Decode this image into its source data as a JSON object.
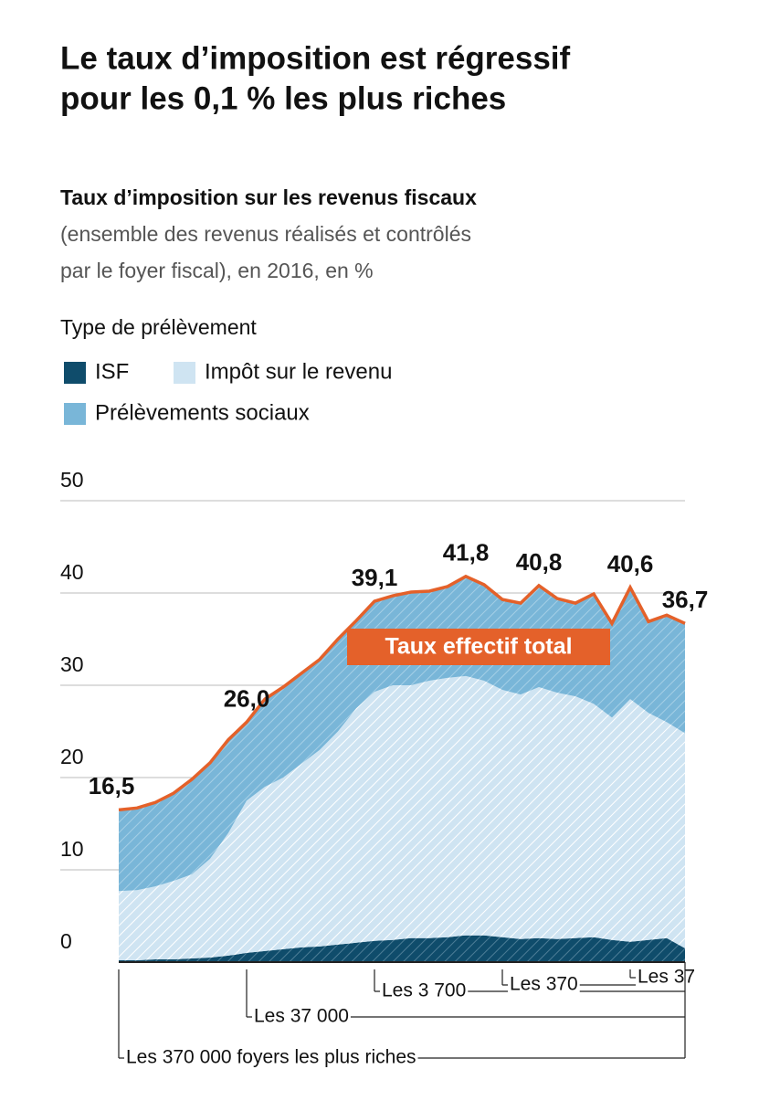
{
  "chart_data": {
    "type": "stacked-area",
    "title": [
      "Le taux d’imposition est régressif",
      "pour les 0,1 % les plus riches"
    ],
    "subtitle": "Taux d’imposition sur les revenus fiscaux",
    "description": [
      "(ensemble des revenus réalisés et contrôlés",
      "par le foyer fiscal), en 2016, en %"
    ],
    "legend_title": "Type de prélèvement",
    "categories": [
      null,
      null,
      null,
      null,
      null,
      null,
      null,
      null,
      null,
      null,
      null,
      null,
      null,
      null,
      null,
      null,
      null,
      null,
      null,
      null,
      null,
      null,
      null,
      null,
      null,
      null,
      null,
      null,
      null,
      null,
      null,
      null
    ],
    "series": [
      {
        "name": "ISF",
        "color": "#0f4c6b",
        "values": [
          0.2,
          0.2,
          0.3,
          0.3,
          0.4,
          0.5,
          0.7,
          1.0,
          1.2,
          1.4,
          1.6,
          1.7,
          1.9,
          2.1,
          2.3,
          2.4,
          2.6,
          2.6,
          2.7,
          2.9,
          2.9,
          2.7,
          2.5,
          2.6,
          2.5,
          2.6,
          2.7,
          2.4,
          2.2,
          2.4,
          2.6,
          1.5
        ]
      },
      {
        "name": "Impôt sur le revenu",
        "color": "#cfe4f2",
        "values": [
          7.5,
          7.6,
          7.9,
          8.5,
          9.1,
          10.7,
          13.3,
          16.5,
          17.8,
          18.6,
          19.9,
          21.3,
          23.1,
          25.4,
          27.0,
          27.6,
          27.4,
          27.9,
          28.1,
          28.1,
          27.6,
          26.8,
          26.5,
          27.2,
          26.7,
          26.2,
          25.3,
          24.1,
          26.3,
          24.6,
          23.4,
          23.3
        ]
      },
      {
        "name": "Prélèvements sociaux",
        "color": "#79b6d8",
        "values": [
          8.8,
          8.9,
          9.1,
          9.5,
          10.3,
          10.4,
          10.1,
          8.5,
          9.5,
          9.8,
          9.8,
          9.8,
          10.0,
          9.5,
          9.8,
          9.7,
          10.1,
          9.7,
          9.9,
          10.8,
          10.4,
          9.8,
          9.9,
          11.0,
          10.2,
          10.1,
          11.9,
          10.2,
          12.1,
          9.9,
          11.6,
          11.9
        ]
      }
    ],
    "total": {
      "name": "Taux effectif total",
      "color": "#e4612a",
      "values": [
        16.5,
        16.7,
        17.3,
        18.3,
        19.8,
        21.6,
        24.1,
        26.0,
        28.5,
        29.8,
        31.3,
        32.8,
        35.0,
        37.0,
        39.1,
        39.7,
        40.1,
        40.2,
        40.7,
        41.8,
        40.9,
        39.3,
        38.9,
        40.8,
        39.4,
        38.9,
        39.9,
        36.7,
        40.6,
        36.9,
        37.6,
        36.7
      ],
      "value_labels": [
        "16,5",
        null,
        null,
        null,
        null,
        null,
        null,
        "26,0",
        null,
        null,
        null,
        null,
        null,
        null,
        "39,1",
        null,
        null,
        null,
        null,
        "41,8",
        null,
        null,
        null,
        "40,8",
        null,
        null,
        null,
        null,
        "40,6",
        null,
        null,
        "36,7"
      ]
    },
    "groups": [
      {
        "label": "Les 370 000 foyers les plus riches",
        "start": 0
      },
      {
        "label": "Les 37 000",
        "start": 7
      },
      {
        "label": "Les 3 700",
        "start": 14
      },
      {
        "label": "Les 370",
        "start": 21
      },
      {
        "label": "Les 37",
        "start": 28
      }
    ],
    "ylim": [
      0,
      50
    ],
    "yticks": [
      0,
      10,
      20,
      30,
      40,
      50
    ],
    "grid": true
  }
}
